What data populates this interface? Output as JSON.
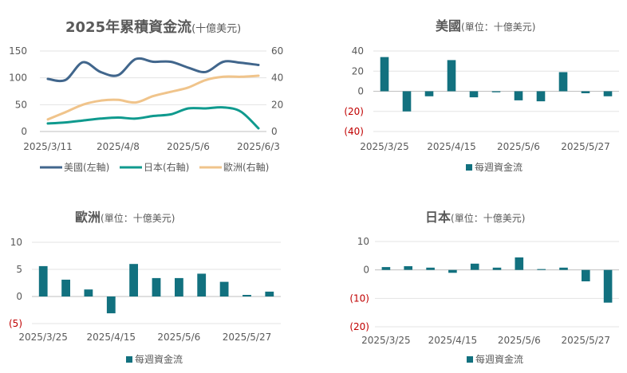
{
  "chart_data": [
    {
      "id": "cumulative",
      "type": "line",
      "title": "2025年累積資金流",
      "title_unit": "(十億美元)",
      "x_tick_labels": [
        "2025/3/11",
        "2025/4/8",
        "2025/5/6",
        "2025/6/3"
      ],
      "ylim_left": [
        0,
        150
      ],
      "ylim_right": [
        0,
        60
      ],
      "y_left_ticks": [
        "0",
        "50",
        "100",
        "150"
      ],
      "y_right_ticks": [
        "0",
        "20",
        "40",
        "60"
      ],
      "legend_position": "bottom",
      "series": [
        {
          "name": "美國(左軸)",
          "axis": "left",
          "color": "#41668c",
          "x": [
            0,
            1,
            2,
            3,
            4,
            5,
            6,
            7,
            8,
            9,
            10,
            11,
            12
          ],
          "values": [
            98,
            96,
            129,
            111,
            105,
            135,
            130,
            130,
            119,
            111,
            130,
            128,
            124
          ]
        },
        {
          "name": "日本(右軸)",
          "axis": "right",
          "color": "#0f9a8e",
          "x": [
            0,
            1,
            2,
            3,
            4,
            5,
            6,
            7,
            8,
            9,
            10,
            11,
            12
          ],
          "values": [
            6,
            6.8,
            8.2,
            9.6,
            10.4,
            9.6,
            11.6,
            12.8,
            17.2,
            17.2,
            18,
            14.8,
            2.4
          ]
        },
        {
          "name": "歐洲(右軸)",
          "axis": "right",
          "color": "#f0c48b",
          "x": [
            0,
            1,
            2,
            3,
            4,
            5,
            6,
            7,
            8,
            9,
            10,
            11,
            12
          ],
          "values": [
            9,
            14.4,
            20,
            23,
            23.6,
            21.6,
            26.4,
            29.6,
            32.8,
            38.4,
            40.8,
            40.8,
            41.6
          ]
        }
      ]
    },
    {
      "id": "us",
      "type": "bar",
      "title": "美國",
      "title_unit": "(單位：十億美元)",
      "ylim": [
        -40,
        40
      ],
      "y_ticks": [
        "40",
        "20",
        "0",
        "(20)",
        "(40)"
      ],
      "x_tick_labels": [
        "2025/3/25",
        "2025/4/15",
        "2025/5/6",
        "2025/5/27"
      ],
      "legend": "每週資金流",
      "color": "#12717f",
      "values": [
        34,
        -20,
        -5,
        31,
        -6,
        -1,
        -9,
        -10,
        19,
        -2,
        -5
      ]
    },
    {
      "id": "europe",
      "type": "bar",
      "title": "歐洲",
      "title_unit": "(單位：十億美元)",
      "ylim": [
        -5,
        10
      ],
      "y_ticks": [
        "10",
        "5",
        "0",
        "(5)"
      ],
      "x_tick_labels": [
        "2025/3/25",
        "2025/4/15",
        "2025/5/6",
        "2025/5/27"
      ],
      "legend": "每週資金流",
      "color": "#12717f",
      "values": [
        5.6,
        3.1,
        1.3,
        -3.1,
        6.0,
        3.4,
        3.4,
        4.2,
        2.7,
        0.3,
        0.9
      ]
    },
    {
      "id": "japan",
      "type": "bar",
      "title": "日本",
      "title_unit": "(單位：十億美元)",
      "ylim": [
        -20,
        10
      ],
      "y_ticks": [
        "10",
        "0",
        "(10)",
        "(20)"
      ],
      "x_tick_labels": [
        "2025/3/25",
        "2025/4/15",
        "2025/5/6",
        "2025/5/27"
      ],
      "legend": "每週資金流",
      "color": "#12717f",
      "values": [
        1.0,
        1.3,
        0.8,
        -1.0,
        2.2,
        0.8,
        4.4,
        0.3,
        0.8,
        -4.0,
        -11.5
      ]
    }
  ]
}
